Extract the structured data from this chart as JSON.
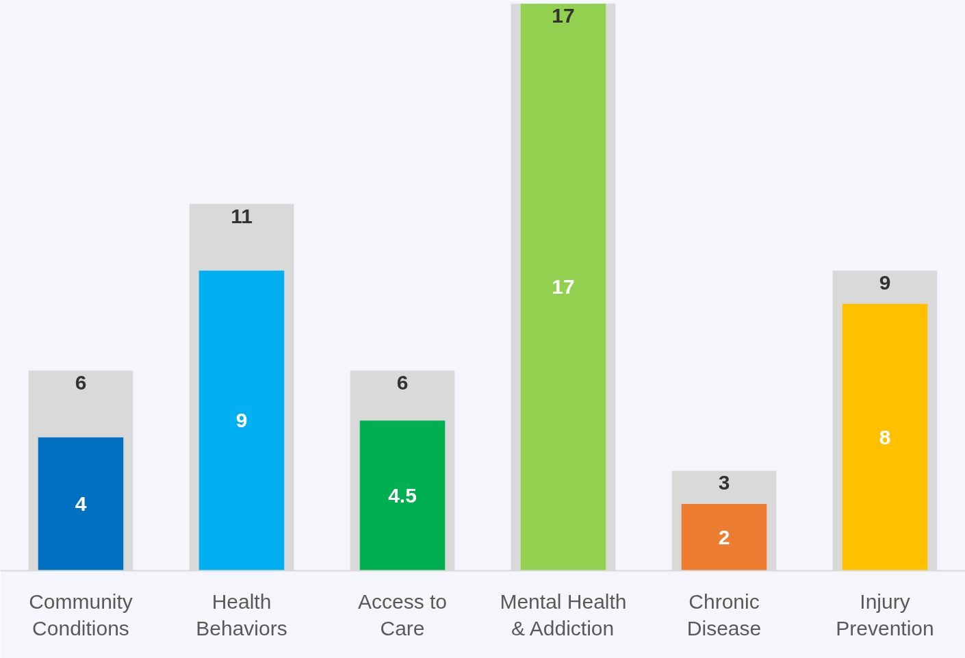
{
  "chart_data": {
    "type": "bar",
    "categories": [
      "Community\nConditions",
      "Health\nBehaviors",
      "Access to\nCare",
      "Mental Health\n& Addiction",
      "Chronic\nDisease",
      "Injury\nPrevention"
    ],
    "series": [
      {
        "color": "#d9d9d9",
        "values": [
          6,
          11,
          6,
          17,
          3,
          9
        ]
      },
      {
        "colors": [
          "#0070c0",
          "#00b0f0",
          "#00b050",
          "#92d050",
          "#ed7d31",
          "#ffc000"
        ],
        "values": [
          4,
          9,
          4.5,
          17,
          2,
          8
        ]
      }
    ],
    "data_labels": true,
    "grid": false
  }
}
